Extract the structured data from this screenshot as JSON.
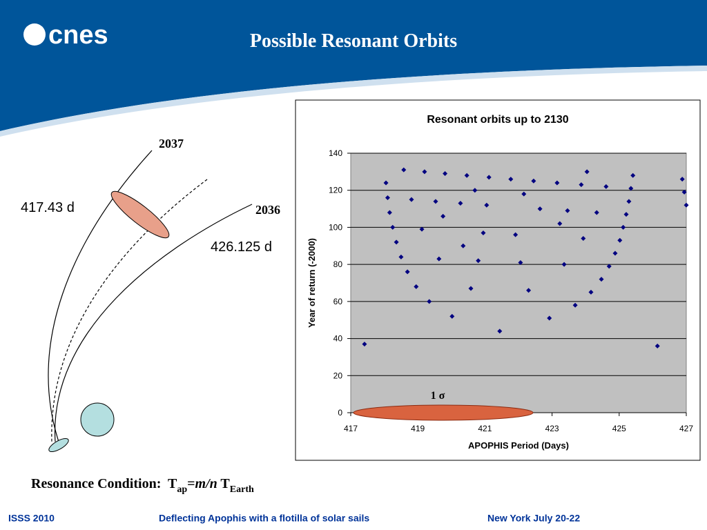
{
  "slide": {
    "logo": "cnes",
    "title": "Possible Resonant Orbits",
    "diagram": {
      "labels": [
        "2037",
        "417.43 d",
        "2036",
        "426.125 d"
      ]
    },
    "condition": [
      "Resonance Condition:  T",
      "ap",
      "=",
      "m/n",
      " T",
      "Earth"
    ],
    "footer": [
      "ISSS 2010",
      "Deflecting Apophis with a flotilla of solar sails",
      "New York July 20-22"
    ]
  },
  "chart_data": {
    "type": "scatter",
    "title": "Resonant orbits up to 2130",
    "x_label": "APOPHIS Period (Days)",
    "y_label": "Year of return (-2000)",
    "annotation": "1 σ",
    "color": "#000080",
    "grid": true,
    "xlim": [
      417,
      427
    ],
    "xticks": [
      417,
      419,
      421,
      423,
      425,
      427
    ],
    "ylim": [
      0,
      140
    ],
    "yticks": [
      0,
      20,
      40,
      60,
      80,
      100,
      120,
      140
    ],
    "x": [
      417.41,
      418.05,
      418.1,
      418.16,
      418.25,
      418.36,
      418.5,
      418.69,
      418.95,
      418.58,
      418.81,
      419.12,
      419.2,
      419.34,
      419.53,
      419.63,
      419.75,
      419.81,
      420.02,
      420.27,
      420.35,
      420.46,
      420.58,
      420.7,
      420.8,
      420.95,
      421.05,
      421.12,
      421.44,
      421.77,
      421.91,
      422.06,
      422.16,
      422.3,
      422.45,
      422.64,
      422.92,
      423.15,
      423.23,
      423.36,
      423.46,
      423.69,
      423.87,
      423.93,
      424.04,
      424.16,
      424.33,
      424.47,
      424.61,
      424.7,
      424.88,
      425.02,
      425.12,
      425.21,
      425.29,
      425.35,
      425.41,
      426.14,
      426.88,
      426.94,
      427
    ],
    "values": [
      37,
      124,
      116,
      108,
      100,
      92,
      84,
      76,
      68,
      131,
      115,
      99,
      130,
      60,
      114,
      83,
      106,
      129,
      52,
      113,
      90,
      128,
      67,
      120,
      82,
      97,
      112,
      127,
      44,
      126,
      96,
      81,
      118,
      66,
      125,
      110,
      51,
      124,
      102,
      80,
      109,
      58,
      123,
      94,
      130,
      65,
      108,
      72,
      122,
      79,
      86,
      93,
      100,
      107,
      114,
      121,
      128,
      36,
      126,
      119,
      112
    ]
  }
}
